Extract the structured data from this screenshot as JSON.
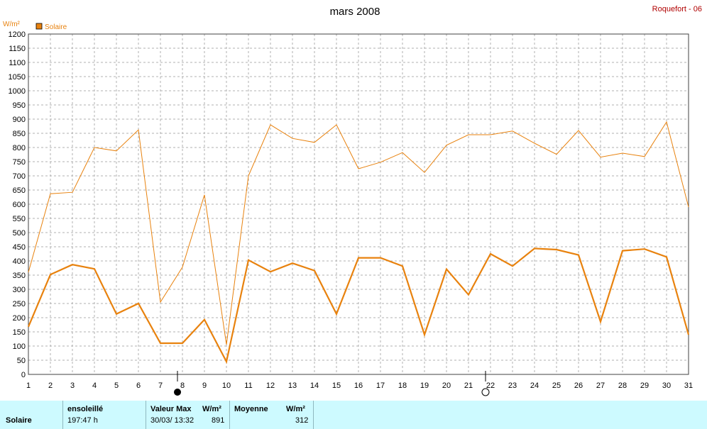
{
  "header": {
    "title": "mars 2008",
    "station": "Roquefort - 06"
  },
  "colors": {
    "series": "#e8820e",
    "grid": "#b0b0b0",
    "footer_bg": "#cdfaff",
    "station_text": "#b00000"
  },
  "chart_data": {
    "type": "line",
    "title": "mars 2008",
    "ylabel": "W/m²",
    "ylim": [
      0,
      1200
    ],
    "ytick_step": 50,
    "xlim": [
      1,
      31
    ],
    "x": [
      1,
      2,
      3,
      4,
      5,
      6,
      7,
      8,
      9,
      10,
      11,
      12,
      13,
      14,
      15,
      16,
      17,
      18,
      19,
      20,
      21,
      22,
      23,
      24,
      25,
      26,
      27,
      28,
      29,
      30,
      31
    ],
    "xtick_labels": [
      "1",
      "2",
      "3",
      "4",
      "5",
      "6",
      "7",
      "8",
      "9",
      "10",
      "11",
      "12",
      "13",
      "14",
      "15",
      "16",
      "17",
      "18",
      "19",
      "20",
      "21",
      "22",
      "23",
      "24",
      "25",
      "26",
      "27",
      "28",
      "29",
      "30",
      "31"
    ],
    "ytick_labels": [
      "0",
      "50",
      "100",
      "150",
      "200",
      "250",
      "300",
      "350",
      "400",
      "450",
      "500",
      "550",
      "600",
      "650",
      "700",
      "750",
      "800",
      "850",
      "900",
      "950",
      "1000",
      "1050",
      "1100",
      "1150",
      "1200"
    ],
    "grid": true,
    "legend": {
      "placement": "top-left",
      "entries": [
        "Solaire"
      ]
    },
    "series": [
      {
        "name": "Solaire",
        "role": "daily maximum",
        "values": [
          360,
          637,
          642,
          800,
          788,
          862,
          255,
          378,
          633,
          105,
          700,
          880,
          832,
          818,
          880,
          725,
          748,
          782,
          712,
          808,
          845,
          845,
          858,
          815,
          776,
          860,
          766,
          780,
          768,
          890,
          590
        ]
      },
      {
        "name": "Solaire",
        "role": "daily mean",
        "values": [
          168,
          352,
          387,
          372,
          213,
          250,
          110,
          110,
          193,
          45,
          403,
          362,
          392,
          366,
          213,
          411,
          411,
          382,
          140,
          371,
          281,
          425,
          382,
          444,
          440,
          421,
          186,
          436,
          442,
          414,
          140
        ]
      }
    ],
    "moon_phases": [
      {
        "day": 8,
        "symbol": "new-moon"
      },
      {
        "day": 22,
        "symbol": "full-moon"
      }
    ]
  },
  "footer": {
    "row_label": "Solaire",
    "ensoleille": {
      "label": "ensoleillé",
      "value": "197:47 h"
    },
    "valeur_max": {
      "label": "Valeur Max",
      "unit": "W/m²",
      "date": "30/03/ 13:32",
      "value": "891"
    },
    "moyenne": {
      "label": "Moyenne",
      "unit": "W/m²",
      "value": "312"
    }
  }
}
